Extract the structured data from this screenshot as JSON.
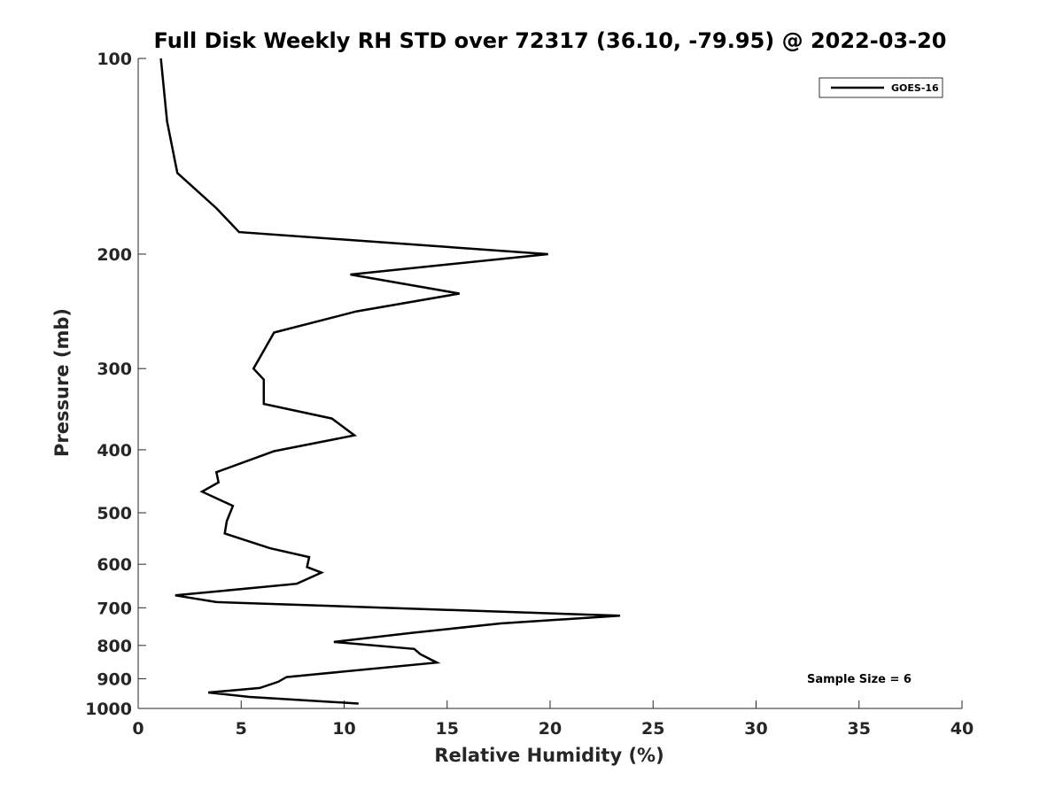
{
  "chart_data": {
    "type": "line",
    "title": "Full Disk Weekly RH STD over 72317 (36.10, -79.95) @ 2022-03-20",
    "xlabel": "Relative Humidity (%)",
    "ylabel": "Pressure (mb)",
    "xlim": [
      0,
      40
    ],
    "ylim": [
      100,
      1000
    ],
    "y_scale": "log",
    "y_reversed": true,
    "xticks": [
      "0",
      "5",
      "10",
      "15",
      "20",
      "25",
      "30",
      "35",
      "40"
    ],
    "yticks": [
      "100",
      "200",
      "300",
      "400",
      "500",
      "600",
      "700",
      "800",
      "900",
      "1000"
    ],
    "grid": false,
    "legend_position": "top-right",
    "series": [
      {
        "name": "GOES-16",
        "color": "#000000",
        "points": [
          [
            1.1,
            100
          ],
          [
            1.4,
            125
          ],
          [
            1.9,
            150
          ],
          [
            3.8,
            170
          ],
          [
            4.9,
            185
          ],
          [
            19.9,
            200
          ],
          [
            10.3,
            215
          ],
          [
            15.6,
            230
          ],
          [
            10.6,
            245
          ],
          [
            6.6,
            264
          ],
          [
            5.6,
            300
          ],
          [
            6.1,
            312
          ],
          [
            6.1,
            340
          ],
          [
            9.4,
            358
          ],
          [
            10.5,
            380
          ],
          [
            6.6,
            402
          ],
          [
            3.8,
            433
          ],
          [
            3.9,
            449
          ],
          [
            3.1,
            464
          ],
          [
            4.6,
            488
          ],
          [
            4.3,
            515
          ],
          [
            4.2,
            538
          ],
          [
            6.4,
            567
          ],
          [
            8.3,
            585
          ],
          [
            8.2,
            606
          ],
          [
            8.9,
            618
          ],
          [
            7.7,
            643
          ],
          [
            1.8,
            670
          ],
          [
            3.8,
            686
          ],
          [
            23.4,
            720
          ],
          [
            17.6,
            740
          ],
          [
            13.3,
            765
          ],
          [
            9.5,
            790
          ],
          [
            13.4,
            810
          ],
          [
            13.7,
            825
          ],
          [
            14.5,
            850
          ],
          [
            7.2,
            895
          ],
          [
            6.8,
            910
          ],
          [
            5.9,
            930
          ],
          [
            3.4,
            945
          ],
          [
            5.4,
            960
          ],
          [
            10.7,
            983
          ]
        ]
      }
    ],
    "annotations": [
      "Sample Size = 6"
    ]
  }
}
